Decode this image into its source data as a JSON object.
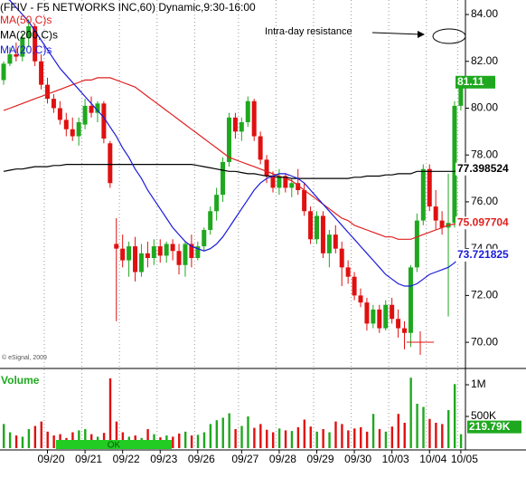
{
  "chart_data": {
    "type": "candlestick",
    "title": "(FFIV - F5 NETWORKS INC,60) Dynamic,9:30-16:00",
    "categories": [
      null,
      null,
      null,
      null,
      null,
      null,
      null,
      "09/20",
      null,
      null,
      null,
      null,
      null,
      "09/21",
      null,
      null,
      null,
      null,
      null,
      "09/22",
      null,
      null,
      null,
      null,
      null,
      "09/23",
      null,
      null,
      null,
      null,
      null,
      "09/26",
      null,
      null,
      null,
      null,
      null,
      null,
      "09/27",
      null,
      null,
      null,
      null,
      null,
      "09/28",
      null,
      null,
      null,
      null,
      null,
      "09/29",
      null,
      null,
      null,
      null,
      null,
      "09/30",
      null,
      null,
      null,
      null,
      null,
      "10/03",
      null,
      null,
      null,
      null,
      null,
      "10/04",
      null,
      null,
      null,
      null,
      "10/05"
    ],
    "ohlc": [
      [
        81.2,
        82,
        81,
        81.9
      ],
      [
        81.9,
        82.6,
        81.8,
        82.3
      ],
      [
        82.3,
        82.8,
        82,
        82.2
      ],
      [
        82.2,
        83.2,
        82,
        83
      ],
      [
        83,
        83.8,
        82.6,
        83.5
      ],
      [
        83.5,
        83.6,
        81.8,
        82
      ],
      [
        82,
        82.3,
        80.8,
        81
      ],
      [
        81,
        81.3,
        80.2,
        80.4
      ],
      [
        80.4,
        80.6,
        79.8,
        80
      ],
      [
        80,
        80.3,
        79.3,
        79.5
      ],
      [
        79.5,
        79.8,
        78.8,
        79.1
      ],
      [
        79.1,
        79.6,
        78.6,
        78.8
      ],
      [
        78.8,
        79.6,
        78.4,
        79.4
      ],
      [
        79.3,
        80.4,
        79.1,
        80.1
      ],
      [
        80.1,
        80.5,
        79.6,
        79.8
      ],
      [
        79.8,
        80.3,
        79.4,
        80.2
      ],
      [
        80.2,
        80.3,
        78.5,
        78.7
      ],
      [
        78.5,
        78.6,
        76.6,
        76.8
      ],
      [
        74.2,
        75.3,
        70.9,
        74
      ],
      [
        74,
        74.6,
        73.2,
        73.5
      ],
      [
        73.5,
        74.3,
        72.8,
        74.1
      ],
      [
        74.1,
        74.5,
        72.6,
        73
      ],
      [
        73,
        74.2,
        72.8,
        73.8
      ],
      [
        73.8,
        74.3,
        73.2,
        73.6
      ],
      [
        73.6,
        74.4,
        73.3,
        74.1
      ],
      [
        74.1,
        74.4,
        73.4,
        73.7
      ],
      [
        73.7,
        74.3,
        73.4,
        74.2
      ],
      [
        74.2,
        74.4,
        73.5,
        73.9
      ],
      [
        73.9,
        74.2,
        72.9,
        73.3
      ],
      [
        73.3,
        74.3,
        72.8,
        74.2
      ],
      [
        74.2,
        74.6,
        73.2,
        73.6
      ],
      [
        73.6,
        74.3,
        73.5,
        74.1
      ],
      [
        74.1,
        74.9,
        73.9,
        74.8
      ],
      [
        74.8,
        75.8,
        74.6,
        75.6
      ],
      [
        75.6,
        76.6,
        75.2,
        76.3
      ],
      [
        76.3,
        77.9,
        76,
        77.7
      ],
      [
        77.7,
        79.8,
        77.5,
        79.6
      ],
      [
        79.6,
        79.8,
        78.7,
        79
      ],
      [
        79,
        79.6,
        78.6,
        79.4
      ],
      [
        79.4,
        80.5,
        79.2,
        80.3
      ],
      [
        80.3,
        80.4,
        78.6,
        78.8
      ],
      [
        78.8,
        79,
        77.6,
        77.8
      ],
      [
        77.8,
        78,
        76.8,
        77.1
      ],
      [
        77.1,
        77.3,
        76.4,
        76.6
      ],
      [
        76.6,
        77.4,
        76.3,
        77.1
      ],
      [
        77.1,
        77.2,
        76.4,
        76.6
      ],
      [
        76.6,
        77,
        76.2,
        76.8
      ],
      [
        76.8,
        77.4,
        76.3,
        76.5
      ],
      [
        76.5,
        76.8,
        75.4,
        75.6
      ],
      [
        75.6,
        75.8,
        74.2,
        74.4
      ],
      [
        74.4,
        75.6,
        74.2,
        75.4
      ],
      [
        75.4,
        75.6,
        73.6,
        73.8
      ],
      [
        73.8,
        74.8,
        73.2,
        74.6
      ],
      [
        74.6,
        75,
        73.8,
        74
      ],
      [
        74,
        74.3,
        72.4,
        73.2
      ],
      [
        73.2,
        73.5,
        72.5,
        72.8
      ],
      [
        72.8,
        73,
        71.8,
        72
      ],
      [
        72,
        72.3,
        71.5,
        71.7
      ],
      [
        71.7,
        71.9,
        70.5,
        70.8
      ],
      [
        70.8,
        71.6,
        70.6,
        71.4
      ],
      [
        71.4,
        71.6,
        70.4,
        70.6
      ],
      [
        70.6,
        71.8,
        70.5,
        71.6
      ],
      [
        71.6,
        71.9,
        70.8,
        71
      ],
      [
        71,
        71.4,
        70.2,
        70.6
      ],
      [
        70.6,
        70.9,
        69.7,
        70.4
      ],
      [
        70.4,
        73.3,
        69.8,
        73.2
      ],
      [
        73.2,
        75.5,
        73,
        75.2
      ],
      [
        75.2,
        77.6,
        75,
        77.4
      ],
      [
        77.4,
        77.6,
        75.6,
        75.8
      ],
      [
        75.8,
        76.5,
        74.8,
        75.2
      ],
      [
        75.2,
        75.6,
        74.6,
        74.9
      ],
      [
        74.9,
        77.2,
        71.1,
        75.1
      ],
      [
        75.1,
        80.3,
        74.9,
        80.1
      ],
      [
        80.1,
        81.3,
        79.9,
        81.11
      ]
    ],
    "up_color": "#1fa81f",
    "down_color": "#e01010",
    "ylim": [
      68.96,
      84.62
    ],
    "yticks": [
      {
        "value": 70,
        "label": "70.00"
      },
      {
        "value": 72,
        "label": "72.00"
      },
      {
        "value": 74,
        "label": "74.00"
      },
      {
        "value": 76,
        "label": "76.00"
      },
      {
        "value": 78,
        "label": "78.00"
      },
      {
        "value": 80,
        "label": "80.00"
      },
      {
        "value": 82,
        "label": "82.00"
      },
      {
        "value": 84,
        "label": "84.00"
      }
    ],
    "series": [
      {
        "name": "MA(50,C)s",
        "color": "#e02020",
        "values": [
          79.9,
          80,
          80.1,
          80.2,
          80.3,
          80.4,
          80.5,
          80.6,
          80.7,
          80.8,
          80.9,
          81,
          81.1,
          81.2,
          81.2,
          81.3,
          81.3,
          81.3,
          81.2,
          81.1,
          81,
          80.9,
          80.7,
          80.5,
          80.3,
          80.1,
          79.9,
          79.7,
          79.5,
          79.3,
          79.1,
          78.9,
          78.7,
          78.5,
          78.3,
          78.1,
          77.9,
          77.8,
          77.7,
          77.6,
          77.5,
          77.4,
          77.3,
          77.2,
          77.1,
          77,
          76.9,
          76.7,
          76.5,
          76.3,
          76.1,
          75.9,
          75.7,
          75.5,
          75.3,
          75.2,
          75,
          74.9,
          74.8,
          74.7,
          74.6,
          74.5,
          74.5,
          74.4,
          74.4,
          74.4,
          74.5,
          74.6,
          74.7,
          74.8,
          74.9,
          75,
          75.05,
          75.097704
        ]
      },
      {
        "name": "MA(200,C)s",
        "color": "#000000",
        "values": [
          77.3,
          77.35,
          77.4,
          77.4,
          77.45,
          77.5,
          77.5,
          77.5,
          77.55,
          77.55,
          77.6,
          77.6,
          77.6,
          77.6,
          77.6,
          77.6,
          77.6,
          77.6,
          77.6,
          77.6,
          77.6,
          77.6,
          77.6,
          77.6,
          77.6,
          77.6,
          77.6,
          77.6,
          77.6,
          77.6,
          77.6,
          77.55,
          77.5,
          77.45,
          77.4,
          77.35,
          77.3,
          77.3,
          77.25,
          77.2,
          77.2,
          77.15,
          77.1,
          77.1,
          77.05,
          77.05,
          77,
          77,
          77,
          77,
          77,
          77,
          77,
          77,
          77,
          77,
          77.05,
          77.05,
          77.1,
          77.1,
          77.1,
          77.15,
          77.15,
          77.2,
          77.2,
          77.2,
          77.3,
          77.3,
          77.3,
          77.3,
          77.3,
          77.3,
          77.3,
          77.398524
        ]
      },
      {
        "name": "MA(20,C)s",
        "color": "#1a1adc",
        "values": [
          84.8,
          84.6,
          84.3,
          84,
          83.7,
          83.3,
          82.9,
          82.5,
          82.1,
          81.7,
          81.4,
          81.1,
          80.8,
          80.5,
          80.2,
          79.9,
          79.6,
          79.2,
          78.8,
          78.3,
          77.9,
          77.4,
          77,
          76.5,
          76.1,
          75.7,
          75.3,
          74.9,
          74.6,
          74.3,
          74.1,
          74,
          73.9,
          74,
          74.2,
          74.5,
          74.9,
          75.3,
          75.7,
          76.1,
          76.5,
          76.8,
          77,
          77.1,
          77.2,
          77.2,
          77.1,
          77,
          76.8,
          76.5,
          76.2,
          75.9,
          75.6,
          75.3,
          75,
          74.7,
          74.4,
          74.1,
          73.8,
          73.5,
          73.2,
          72.9,
          72.7,
          72.5,
          72.4,
          72.4,
          72.5,
          72.7,
          72.9,
          73,
          73.1,
          73.2,
          73.4,
          73.721825
        ]
      }
    ],
    "volume": {
      "title": "Volume",
      "values": [
        380000,
        250000,
        200000,
        180000,
        300000,
        350000,
        420000,
        260000,
        200000,
        220000,
        160000,
        250000,
        280000,
        300000,
        220000,
        180000,
        240000,
        1100000,
        420000,
        250000,
        180000,
        200000,
        160000,
        300000,
        220000,
        170000,
        200000,
        180000,
        230000,
        260000,
        200000,
        210000,
        250000,
        380000,
        440000,
        480000,
        550000,
        300000,
        350000,
        500000,
        320000,
        380000,
        290000,
        250000,
        310000,
        280000,
        270000,
        330000,
        450000,
        340000,
        260000,
        300000,
        250000,
        420000,
        380000,
        280000,
        310000,
        330000,
        260000,
        540000,
        300000,
        260000,
        340000,
        540000,
        400000,
        1110000,
        700000,
        650000,
        460000,
        400000,
        380000,
        600000,
        1010000,
        219790
      ],
      "ylim": [
        0,
        1214000
      ],
      "yticks": [
        {
          "value": 500000,
          "label": "500K"
        },
        {
          "value": 1000000,
          "label": "1M"
        }
      ],
      "last_label": "219.79K"
    },
    "annotation": "Intra-day resistance",
    "credit": "© eSignal, 2009",
    "scroll_label": "OK"
  }
}
